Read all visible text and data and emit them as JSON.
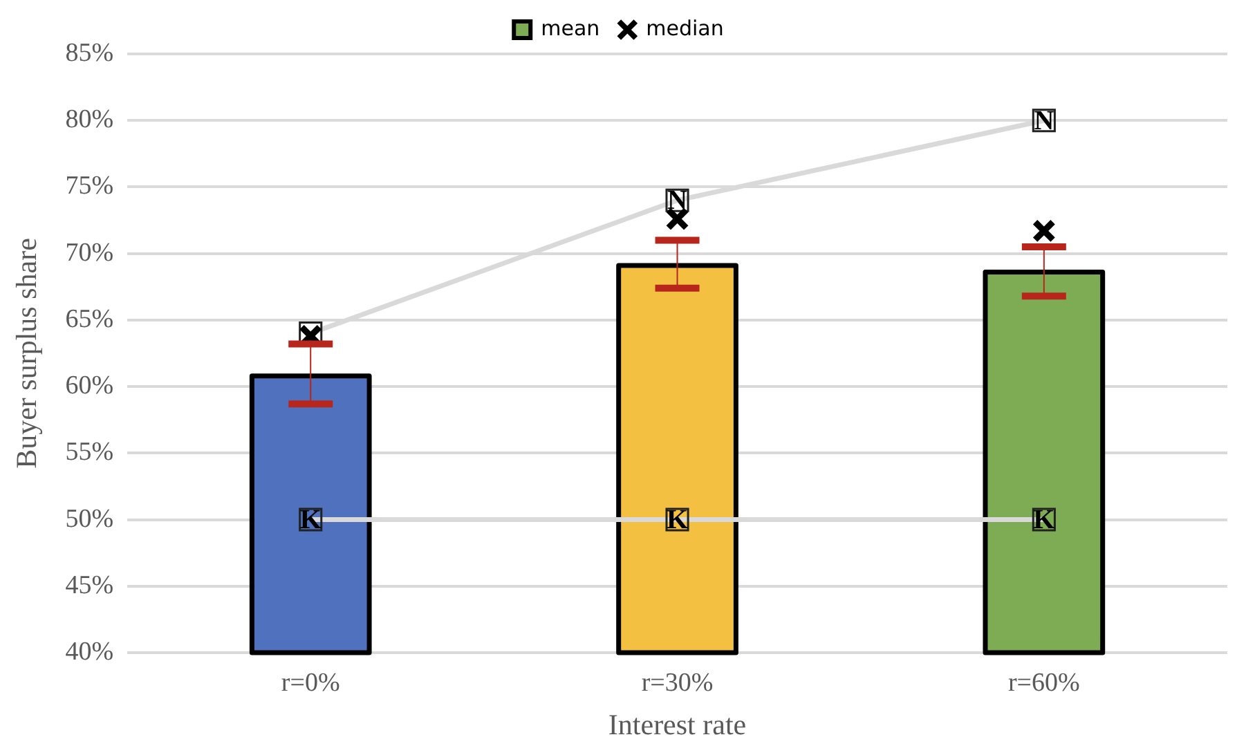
{
  "chart_data": {
    "type": "bar",
    "xlabel": "Interest rate",
    "ylabel": "Buyer surplus share",
    "categories": [
      "r=0%",
      "r=30%",
      "r=60%"
    ],
    "series": [
      {
        "name": "mean",
        "color": "#7dac55",
        "colors": [
          "#4f71be",
          "#f4c042",
          "#7dac55"
        ],
        "values": [
          60.8,
          69.1,
          68.6
        ],
        "errors": [
          [
            58.7,
            63.2
          ],
          [
            67.4,
            71.0
          ],
          [
            66.8,
            70.5
          ]
        ]
      },
      {
        "name": "median",
        "type": "scatter",
        "marker": "cross",
        "color": "#000000",
        "values": [
          63.8,
          72.6,
          71.7
        ]
      },
      {
        "name": "N",
        "type": "line",
        "marker": "square",
        "color": "#d9d9d9",
        "values": [
          64,
          74,
          80
        ]
      },
      {
        "name": "K",
        "type": "line",
        "marker": "square",
        "color": "#d9d9d9",
        "values": [
          50,
          50,
          50
        ]
      }
    ],
    "ylim": [
      40,
      85
    ],
    "yticks": [
      {
        "value": 40,
        "label": "40%"
      },
      {
        "value": 45,
        "label": "45%"
      },
      {
        "value": 50,
        "label": "50%"
      },
      {
        "value": 55,
        "label": "55%"
      },
      {
        "value": 60,
        "label": "60%"
      },
      {
        "value": 65,
        "label": "65%"
      },
      {
        "value": 70,
        "label": "70%"
      },
      {
        "value": 75,
        "label": "75%"
      },
      {
        "value": 80,
        "label": "80%"
      },
      {
        "value": 85,
        "label": "85%"
      }
    ],
    "grid": "y",
    "legend": "top"
  }
}
